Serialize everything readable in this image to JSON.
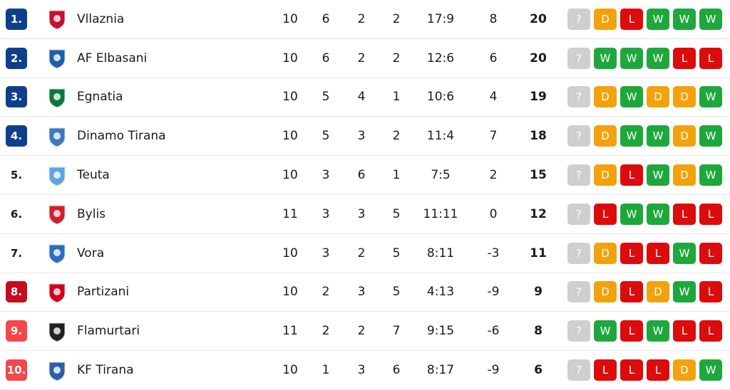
{
  "form_colors": {
    "?": "#cfcfcf",
    "W": "#1ea83c",
    "D": "#f2a20c",
    "L": "#dc0c0c"
  },
  "table": {
    "rows": [
      {
        "rank": "1.",
        "team": "Vllaznia",
        "played": 10,
        "wins": 6,
        "draws": 2,
        "losses": 2,
        "goals": "17:9",
        "diff": 8,
        "points": 20,
        "form": [
          "?",
          "D",
          "L",
          "W",
          "W",
          "W"
        ]
      },
      {
        "rank": "2.",
        "team": "AF Elbasani",
        "played": 10,
        "wins": 6,
        "draws": 2,
        "losses": 2,
        "goals": "12:6",
        "diff": 6,
        "points": 20,
        "form": [
          "?",
          "W",
          "W",
          "W",
          "L",
          "L"
        ]
      },
      {
        "rank": "3.",
        "team": "Egnatia",
        "played": 10,
        "wins": 5,
        "draws": 4,
        "losses": 1,
        "goals": "10:6",
        "diff": 4,
        "points": 19,
        "form": [
          "?",
          "D",
          "W",
          "D",
          "D",
          "W"
        ]
      },
      {
        "rank": "4.",
        "team": "Dinamo Tirana",
        "played": 10,
        "wins": 5,
        "draws": 3,
        "losses": 2,
        "goals": "11:4",
        "diff": 7,
        "points": 18,
        "form": [
          "?",
          "D",
          "W",
          "W",
          "D",
          "W"
        ]
      },
      {
        "rank": "5.",
        "team": "Teuta",
        "played": 10,
        "wins": 3,
        "draws": 6,
        "losses": 1,
        "goals": "7:5",
        "diff": 2,
        "points": 15,
        "form": [
          "?",
          "D",
          "L",
          "W",
          "D",
          "W"
        ]
      },
      {
        "rank": "6.",
        "team": "Bylis",
        "played": 11,
        "wins": 3,
        "draws": 3,
        "losses": 5,
        "goals": "11:11",
        "diff": 0,
        "points": 12,
        "form": [
          "?",
          "L",
          "W",
          "W",
          "L",
          "L"
        ]
      },
      {
        "rank": "7.",
        "team": "Vora",
        "played": 10,
        "wins": 3,
        "draws": 2,
        "losses": 5,
        "goals": "8:11",
        "diff": -3,
        "points": 11,
        "form": [
          "?",
          "D",
          "L",
          "L",
          "W",
          "L"
        ]
      },
      {
        "rank": "8.",
        "team": "Partizani",
        "played": 10,
        "wins": 2,
        "draws": 3,
        "losses": 5,
        "goals": "4:13",
        "diff": -9,
        "points": 9,
        "form": [
          "?",
          "D",
          "L",
          "D",
          "W",
          "L"
        ]
      },
      {
        "rank": "9.",
        "team": "Flamurtari",
        "played": 11,
        "wins": 2,
        "draws": 2,
        "losses": 7,
        "goals": "9:15",
        "diff": -6,
        "points": 8,
        "form": [
          "?",
          "W",
          "L",
          "W",
          "L",
          "L"
        ]
      },
      {
        "rank": "10.",
        "team": "KF Tirana",
        "played": 10,
        "wins": 1,
        "draws": 3,
        "losses": 6,
        "goals": "8:17",
        "diff": -9,
        "points": 6,
        "form": [
          "?",
          "L",
          "L",
          "L",
          "D",
          "W"
        ]
      }
    ]
  }
}
